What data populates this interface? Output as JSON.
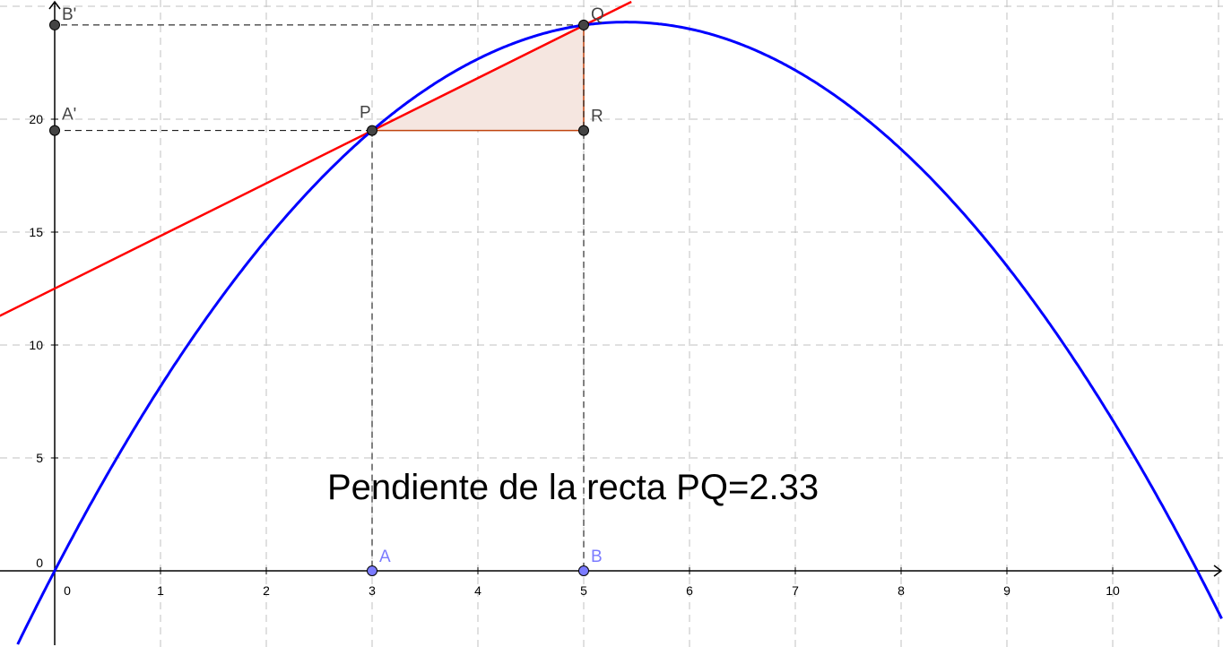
{
  "chart_data": {
    "type": "line",
    "grid": true,
    "xlim": [
      -0.52,
      10.52
    ],
    "ylim": [
      -3.4,
      25.2
    ],
    "x_ticks": [
      "0",
      "1",
      "2",
      "3",
      "4",
      "5",
      "6",
      "7",
      "8",
      "9",
      "10"
    ],
    "y_ticks": [
      "0",
      "5",
      "10",
      "15",
      "20"
    ],
    "series": [
      {
        "kind": "parabola",
        "expression": "9x - (5/6)x^2",
        "color": "#0000ff"
      },
      {
        "kind": "secant-line",
        "through": [
          "P",
          "Q"
        ],
        "slope": 2.33,
        "intercept": 12.5,
        "color": "#ff0000"
      }
    ],
    "points": [
      {
        "label": "P",
        "x": 3,
        "y": 19.5,
        "color": "#444444"
      },
      {
        "label": "Q",
        "x": 5,
        "y": 24.17,
        "color": "#444444"
      },
      {
        "label": "R",
        "x": 5,
        "y": 19.5,
        "color": "#444444"
      },
      {
        "label": "A",
        "x": 3,
        "y": 0,
        "color": "#7b7bff"
      },
      {
        "label": "B",
        "x": 5,
        "y": 0,
        "color": "#7b7bff"
      },
      {
        "label": "A'",
        "x": 0,
        "y": 19.5,
        "color": "#444444"
      },
      {
        "label": "B'",
        "x": 0,
        "y": 24.17,
        "color": "#444444"
      }
    ],
    "triangle": {
      "vertices": [
        "P",
        "Q",
        "R"
      ],
      "fill": "#f5e6e0",
      "stroke": "#c0440f"
    },
    "annotation": "Pendiente de la recta PQ=2.33"
  }
}
